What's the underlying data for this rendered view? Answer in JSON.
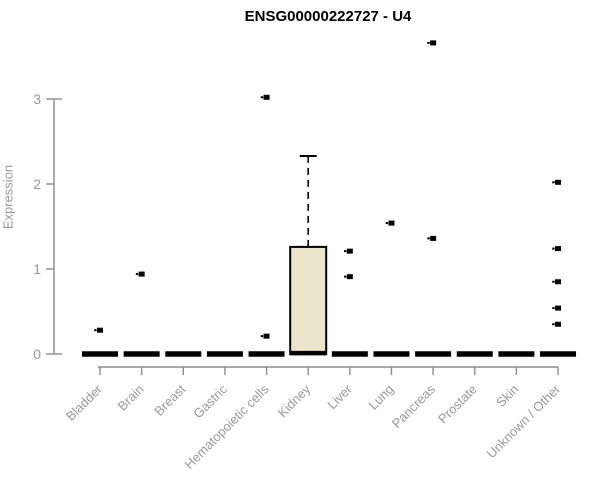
{
  "chart_data": {
    "type": "boxplot",
    "title": "ENSG00000222727 - U4",
    "ylabel": "Expression",
    "ylim": [
      0,
      3
    ],
    "yticks": [
      "0",
      "1",
      "2",
      "3"
    ],
    "grid": false,
    "legend": "none",
    "categories": [
      "Bladder",
      "Brain",
      "Breast",
      "Gastric",
      "Hematopoietic cells",
      "Kidney",
      "Liver",
      "Lung",
      "Pancreas",
      "Prostate",
      "Skin",
      "Unknown / Other"
    ],
    "boxes": [
      {
        "category": "Bladder",
        "whisker_low": 0,
        "q1": 0,
        "median": 0,
        "q3": 0,
        "whisker_high": 0,
        "outliers": [
          0.28
        ]
      },
      {
        "category": "Brain",
        "whisker_low": 0,
        "q1": 0,
        "median": 0,
        "q3": 0,
        "whisker_high": 0,
        "outliers": [
          0.94
        ]
      },
      {
        "category": "Breast",
        "whisker_low": 0,
        "q1": 0,
        "median": 0,
        "q3": 0,
        "whisker_high": 0,
        "outliers": []
      },
      {
        "category": "Gastric",
        "whisker_low": 0,
        "q1": 0,
        "median": 0,
        "q3": 0,
        "whisker_high": 0,
        "outliers": []
      },
      {
        "category": "Hematopoietic cells",
        "whisker_low": 0,
        "q1": 0,
        "median": 0,
        "q3": 0,
        "whisker_high": 0,
        "outliers": [
          3.02,
          0.21
        ]
      },
      {
        "category": "Kidney",
        "whisker_low": 0,
        "q1": 0,
        "median": 0.01,
        "q3": 1.26,
        "whisker_high": 2.33,
        "outliers": []
      },
      {
        "category": "Liver",
        "whisker_low": 0,
        "q1": 0,
        "median": 0,
        "q3": 0,
        "whisker_high": 0,
        "outliers": [
          1.21,
          0.91
        ]
      },
      {
        "category": "Lung",
        "whisker_low": 0,
        "q1": 0,
        "median": 0,
        "q3": 0,
        "whisker_high": 0,
        "outliers": [
          1.54
        ]
      },
      {
        "category": "Pancreas",
        "whisker_low": 0,
        "q1": 0,
        "median": 0,
        "q3": 0,
        "whisker_high": 0,
        "outliers": [
          3.66,
          1.36
        ]
      },
      {
        "category": "Prostate",
        "whisker_low": 0,
        "q1": 0,
        "median": 0,
        "q3": 0,
        "whisker_high": 0,
        "outliers": []
      },
      {
        "category": "Skin",
        "whisker_low": 0,
        "q1": 0,
        "median": 0,
        "q3": 0,
        "whisker_high": 0,
        "outliers": []
      },
      {
        "category": "Unknown / Other",
        "whisker_low": 0,
        "q1": 0,
        "median": 0,
        "q3": 0,
        "whisker_high": 0,
        "outliers": [
          2.02,
          1.24,
          0.85,
          0.54,
          0.35
        ]
      }
    ],
    "colors": {
      "box_fill": "#EAE5CA",
      "box_stroke": "#000000",
      "outlier": "#000000",
      "axis": "#8C8C8C",
      "labels": "#999999",
      "title": "#000000"
    }
  }
}
